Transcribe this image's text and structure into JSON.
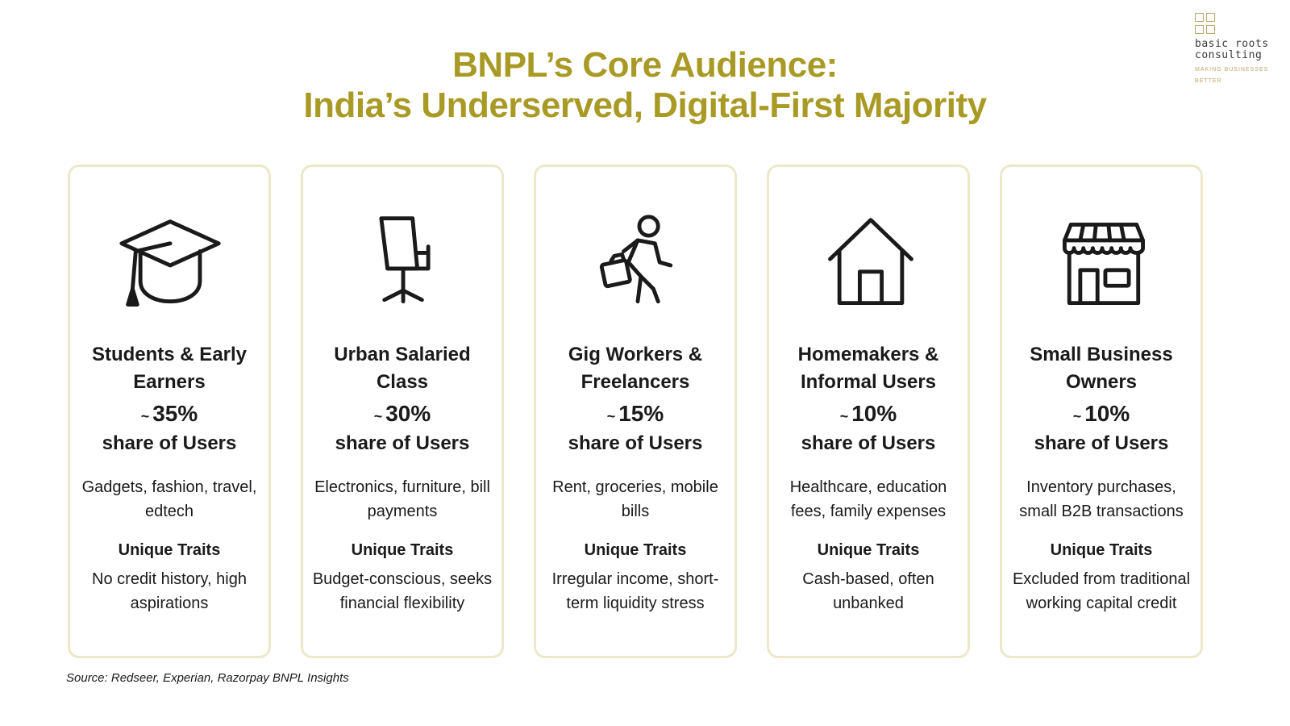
{
  "title": {
    "line1": "BNPL’s Core Audience:",
    "line2": "India’s Underserved, Digital-First Majority"
  },
  "logo": {
    "name_line1": "basic roots",
    "name_line2": "consulting",
    "tagline_line1": "MAKING BUSINESSES",
    "tagline_line2": "BETTER"
  },
  "colors": {
    "accent": "#a89a25",
    "card_border": "#ede8ca",
    "logo_gold": "#c2a469"
  },
  "share_label": "share of Users",
  "traits_heading": "Unique Traits",
  "segments": [
    {
      "icon": "graduation-cap-icon",
      "title": "Students & Early Earners",
      "share": "35%",
      "use_cases": "Gadgets, fashion, travel, edtech",
      "traits": "No credit history, high aspirations"
    },
    {
      "icon": "office-chair-icon",
      "title": "Urban Salaried Class",
      "share": "30%",
      "use_cases": "Electronics, furniture, bill payments",
      "traits": "Budget-conscious, seeks financial flexibility"
    },
    {
      "icon": "walking-person-briefcase-icon",
      "title": "Gig Workers & Freelancers",
      "share": "15%",
      "use_cases": "Rent, groceries, mobile bills",
      "traits": "Irregular income, short-term liquidity stress"
    },
    {
      "icon": "house-icon",
      "title": "Homemakers & Informal Users",
      "share": "10%",
      "use_cases": "Healthcare, education fees, family expenses",
      "traits": "Cash-based, often unbanked"
    },
    {
      "icon": "storefront-icon",
      "title": "Small Business Owners",
      "share": "10%",
      "use_cases": "Inventory purchases, small B2B transactions",
      "traits": "Excluded from traditional working capital credit"
    }
  ],
  "source": "Source: Redseer, Experian, Razorpay BNPL Insights"
}
